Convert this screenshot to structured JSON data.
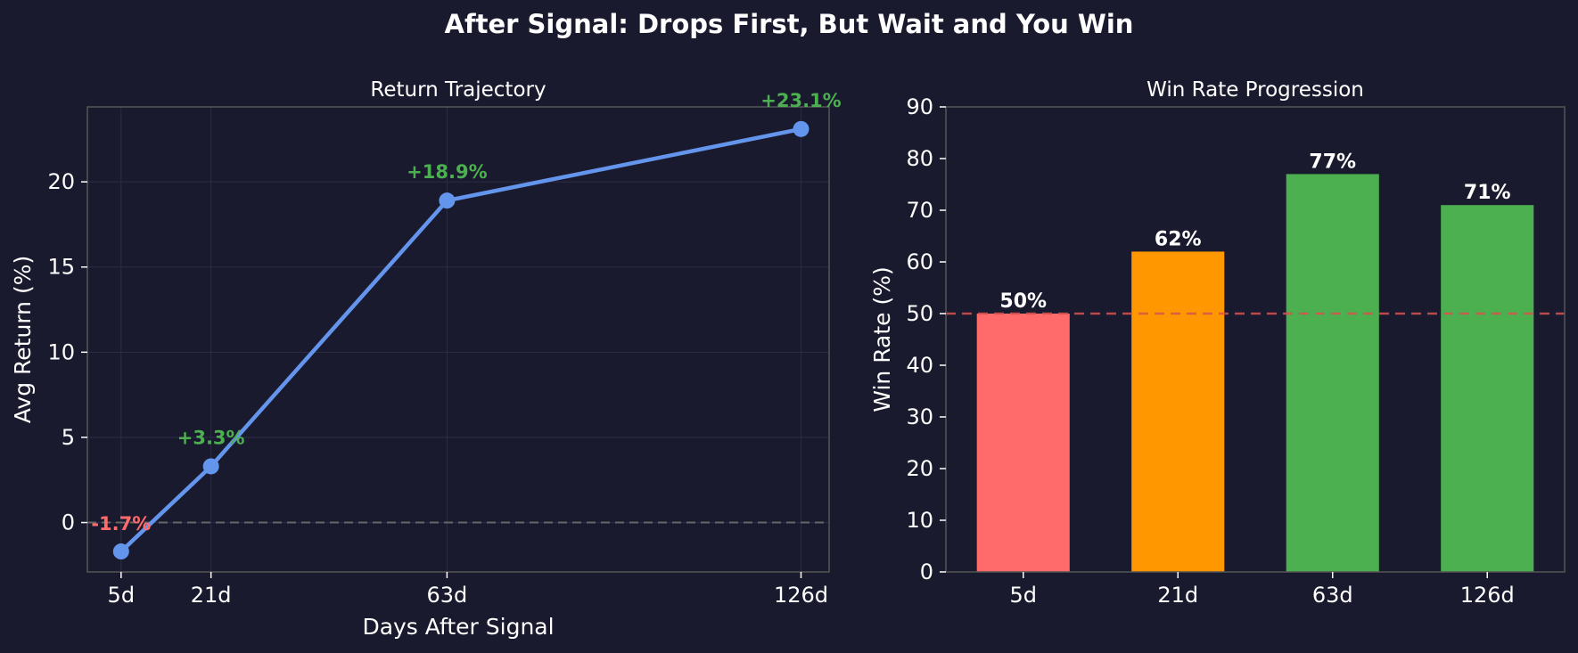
{
  "suptitle": "After Signal: Drops First, But Wait and You Win",
  "colors": {
    "background": "#1a1a2e",
    "line": "#6495ed",
    "positive": "#4caf50",
    "negative": "#ff6b6b",
    "bar_low": "#ff6b6b",
    "bar_mid": "#ff9800",
    "bar_high": "#4caf50",
    "reference_line_left": "#666666",
    "reference_line_right": "#d9534f"
  },
  "chart_data": [
    {
      "type": "line",
      "title": "Return Trajectory",
      "xlabel": "Days After Signal",
      "ylabel": "Avg Return (%)",
      "x": [
        5,
        21,
        63,
        126
      ],
      "x_tick_labels": [
        "5d",
        "21d",
        "63d",
        "126d"
      ],
      "series": [
        {
          "values": [
            -1.7,
            3.3,
            18.9,
            23.1
          ]
        }
      ],
      "point_labels": [
        "-1.7%",
        "+3.3%",
        "+18.9%",
        "+23.1%"
      ],
      "y_ticks": [
        0,
        5,
        10,
        15,
        20
      ],
      "xlim": [
        -1,
        131
      ],
      "ylim": [
        -2.9,
        24.4
      ],
      "reference_line": 0,
      "grid": true
    },
    {
      "type": "bar",
      "title": "Win Rate Progression",
      "xlabel": "",
      "ylabel": "Win Rate (%)",
      "categories": [
        "5d",
        "21d",
        "63d",
        "126d"
      ],
      "values": [
        50,
        62,
        77,
        71
      ],
      "value_labels": [
        "50%",
        "62%",
        "77%",
        "71%"
      ],
      "y_ticks": [
        0,
        10,
        20,
        30,
        40,
        50,
        60,
        70,
        80,
        90
      ],
      "ylim": [
        0,
        90
      ],
      "reference_line": 50,
      "grid": false
    }
  ]
}
